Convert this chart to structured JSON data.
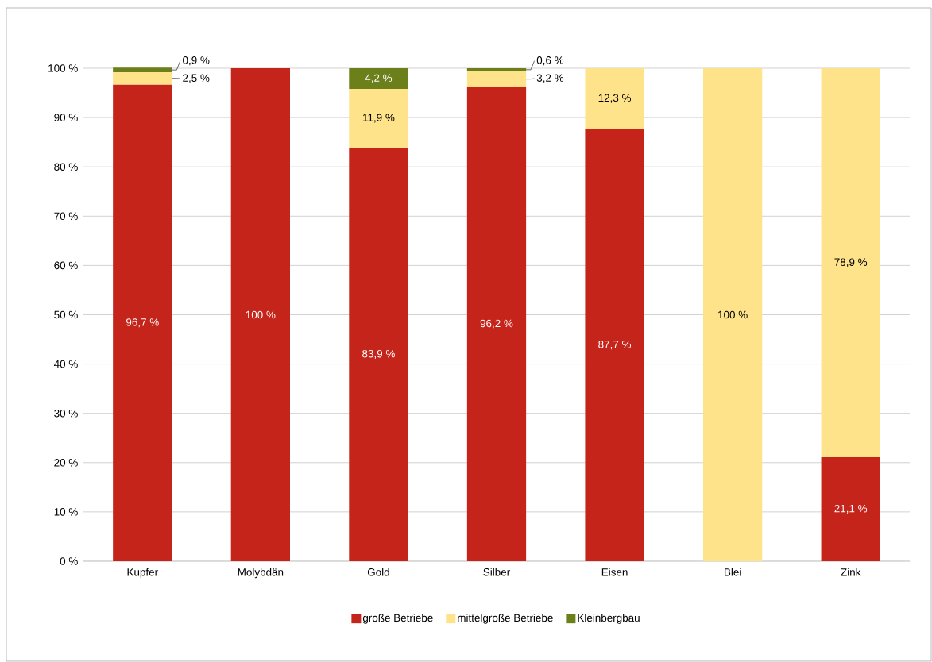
{
  "chart_data": {
    "type": "bar",
    "stacked": true,
    "categories": [
      "Kupfer",
      "Molybdän",
      "Gold",
      "Silber",
      "Eisen",
      "Blei",
      "Zink"
    ],
    "series": [
      {
        "name": "große Betriebe",
        "color": "#c4241a",
        "values": [
          96.7,
          100,
          83.9,
          96.2,
          87.7,
          null,
          21.1
        ],
        "value_labels": [
          "96,7 %",
          "100 %",
          "83,9 %",
          "96,2 %",
          "87,7 %",
          null,
          "21,1 %"
        ]
      },
      {
        "name": "mittelgroße Betriebe",
        "color": "#fee38a",
        "values": [
          2.5,
          null,
          11.9,
          3.2,
          12.3,
          100,
          78.9
        ],
        "value_labels": [
          "2,5 %",
          null,
          "11,9 %",
          "3,2 %",
          "12,3 %",
          "100 %",
          "78,9 %"
        ]
      },
      {
        "name": "Kleinbergbau",
        "color": "#6b7f1b",
        "values": [
          0.9,
          null,
          4.2,
          0.6,
          null,
          null,
          null
        ],
        "value_labels": [
          "0,9 %",
          null,
          "4,2 %",
          "0,6 %",
          null,
          null,
          null
        ]
      }
    ],
    "ylim": [
      0,
      100
    ],
    "yticks": [
      {
        "value": 0,
        "label": "0 %"
      },
      {
        "value": 10,
        "label": "10 %"
      },
      {
        "value": 20,
        "label": "20 %"
      },
      {
        "value": 30,
        "label": "30 %"
      },
      {
        "value": 40,
        "label": "40 %"
      },
      {
        "value": 50,
        "label": "50 %"
      },
      {
        "value": 60,
        "label": "60 %"
      },
      {
        "value": 70,
        "label": "70 %"
      },
      {
        "value": 80,
        "label": "80 %"
      },
      {
        "value": 90,
        "label": "90 %"
      },
      {
        "value": 100,
        "label": "100 %"
      }
    ],
    "grid": "y",
    "legend": "bottom"
  }
}
